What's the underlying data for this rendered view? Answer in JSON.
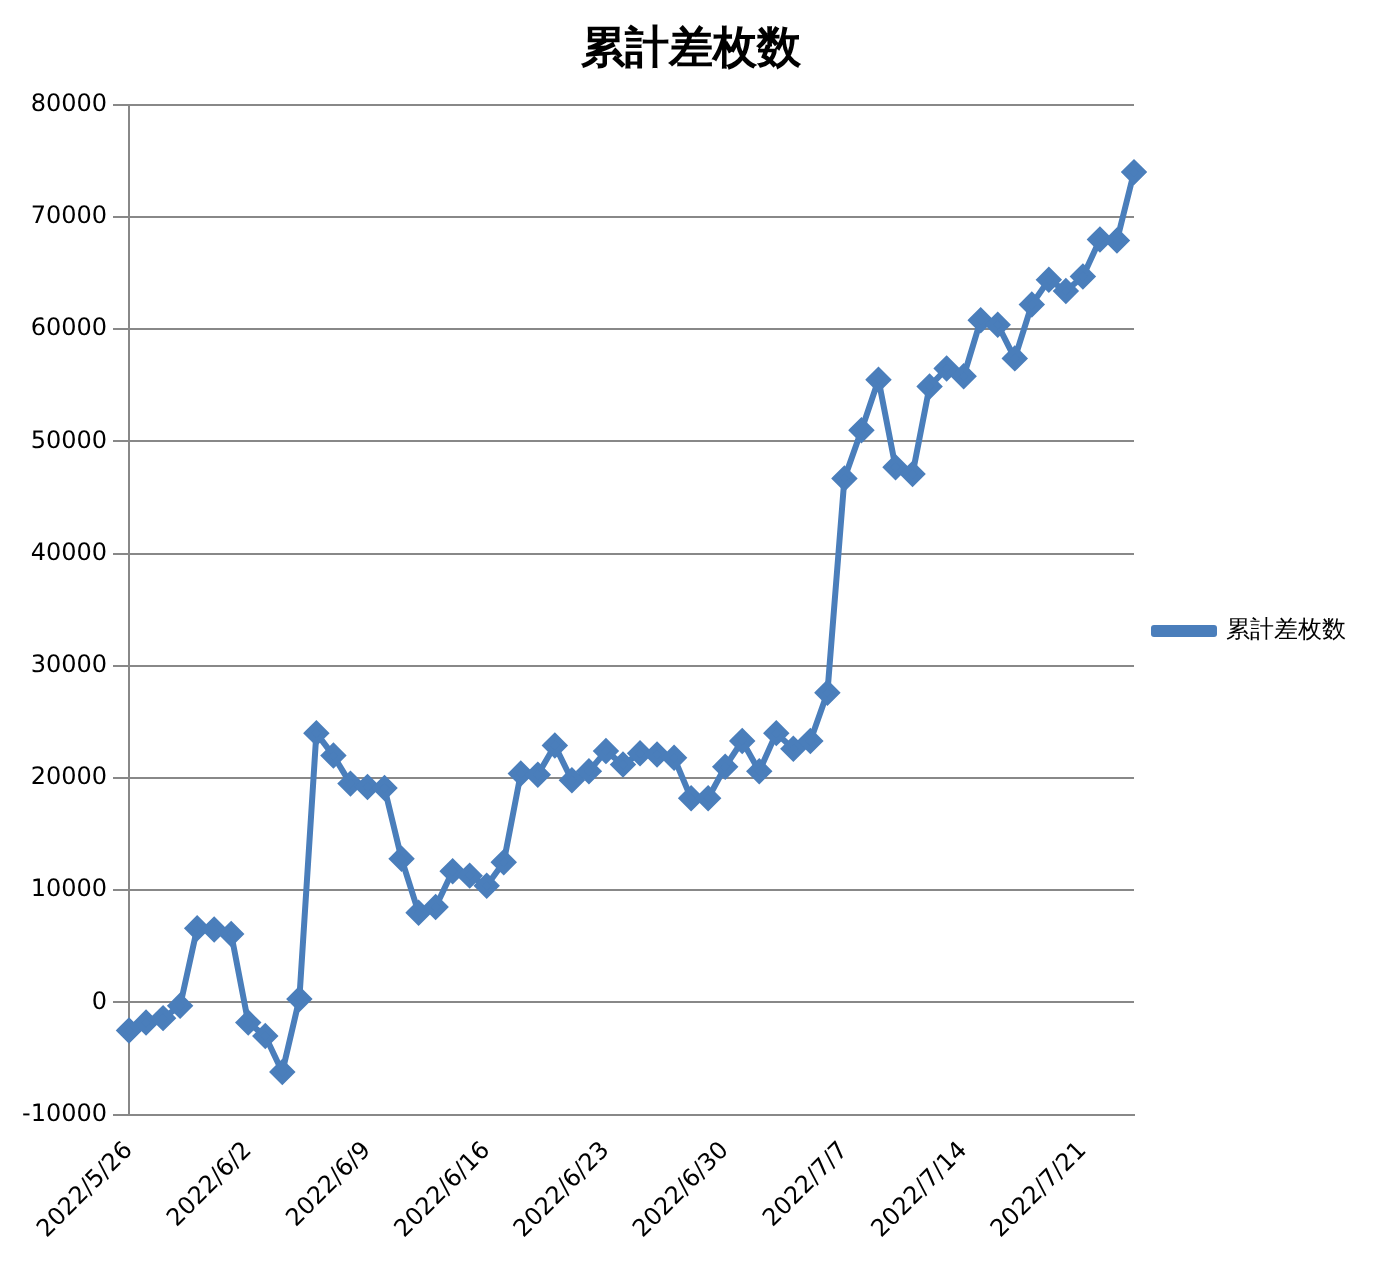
{
  "chart_data": {
    "type": "line",
    "title": "累計差枚数",
    "categories": [
      "2022/5/26",
      null,
      null,
      null,
      null,
      null,
      null,
      "2022/6/2",
      null,
      null,
      null,
      null,
      null,
      null,
      "2022/6/9",
      null,
      null,
      null,
      null,
      null,
      null,
      "2022/6/16",
      null,
      null,
      null,
      null,
      null,
      null,
      "2022/6/23",
      null,
      null,
      null,
      null,
      null,
      null,
      "2022/6/30",
      null,
      null,
      null,
      null,
      null,
      null,
      "2022/7/7",
      null,
      null,
      null,
      null,
      null,
      null,
      "2022/7/14",
      null,
      null,
      null,
      null,
      null,
      null,
      "2022/7/21",
      null,
      null,
      null
    ],
    "series": [
      {
        "name": "累計差枚数",
        "color": "#4a7ebb",
        "values": [
          -2500,
          -1800,
          -1400,
          -300,
          6600,
          6500,
          6100,
          -1800,
          -3000,
          -6200,
          300,
          24000,
          22000,
          19500,
          19200,
          19100,
          12800,
          8000,
          8500,
          11700,
          11300,
          10400,
          12500,
          20400,
          20300,
          22900,
          19800,
          20600,
          22400,
          21200,
          22200,
          22100,
          21800,
          18200,
          18200,
          21000,
          23300,
          20600,
          24000,
          22600,
          23300,
          27600,
          46700,
          51000,
          55500,
          47700,
          47100,
          54900,
          56500,
          55800,
          60800,
          60400,
          57400,
          62200,
          64400,
          63400,
          64700,
          68000,
          67900,
          74000
        ]
      }
    ],
    "ylim": [
      -10000,
      80000
    ],
    "yticks": [
      -10000,
      0,
      10000,
      20000,
      30000,
      40000,
      50000,
      60000,
      70000,
      80000
    ],
    "grid": "y",
    "legend": "right",
    "marker": "diamond",
    "line_style": "solid"
  }
}
